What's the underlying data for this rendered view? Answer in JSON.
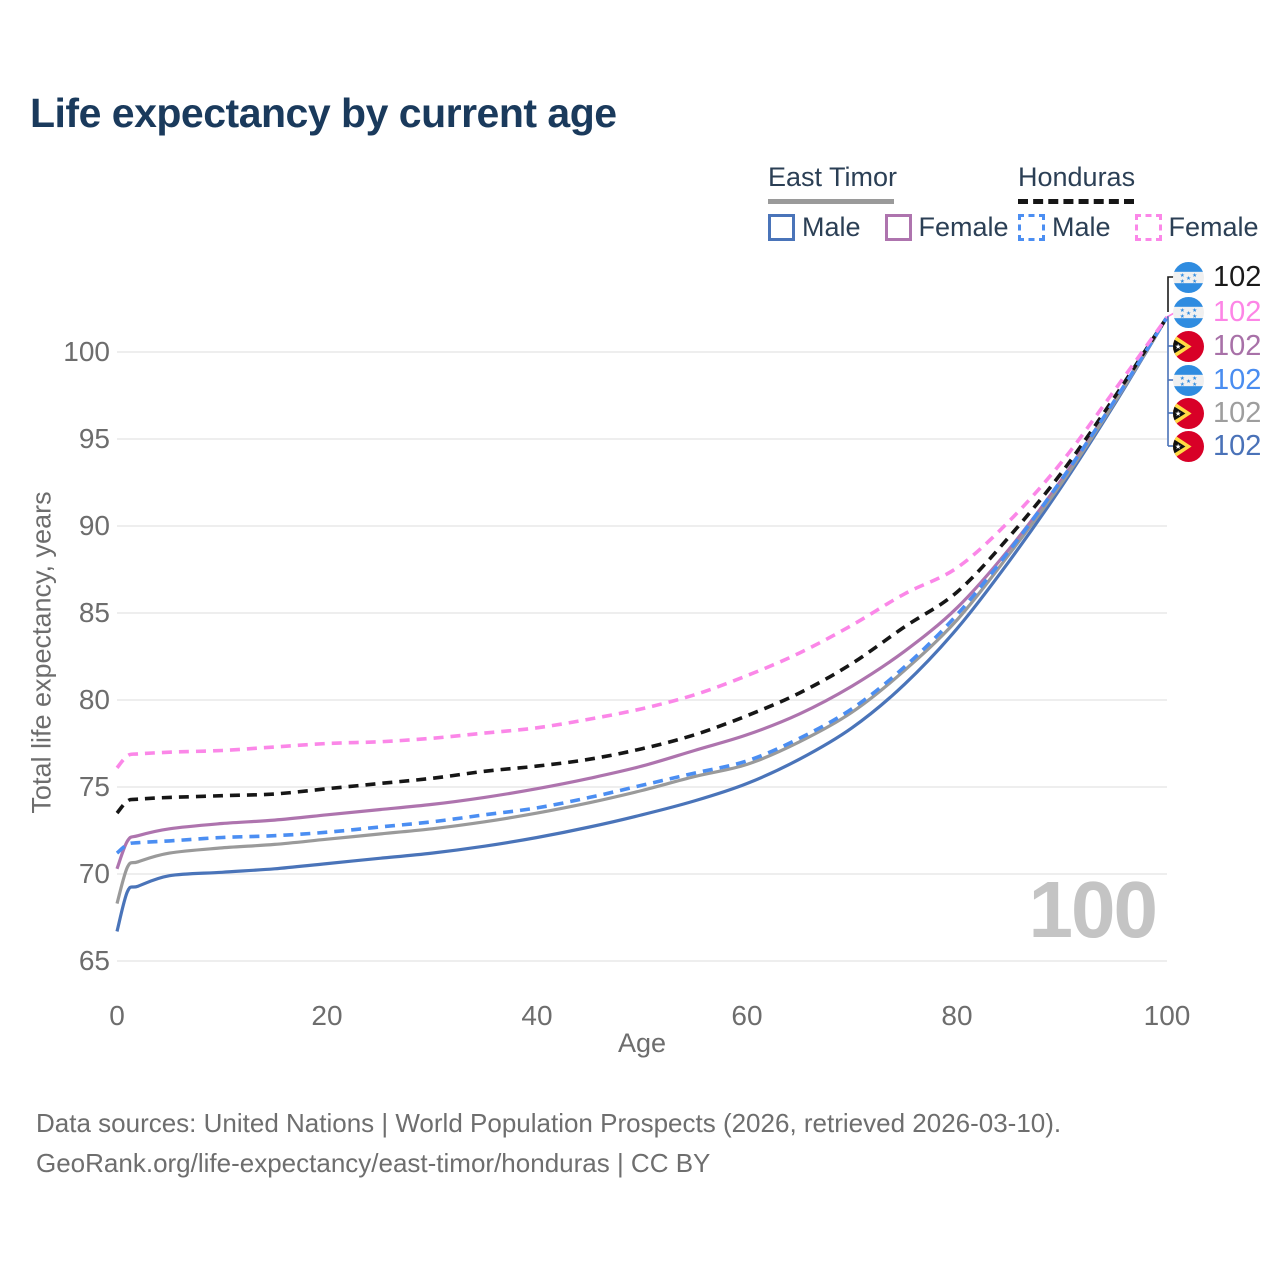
{
  "title": "Life expectancy by current age",
  "legend": {
    "groups": [
      {
        "name": "East Timor",
        "rule_color": "#9a9a9a",
        "rule_dashed": false,
        "items": [
          {
            "label": "Male",
            "color": "#4a74b9",
            "dashed": false
          },
          {
            "label": "Female",
            "color": "#ae74ae",
            "dashed": false
          }
        ]
      },
      {
        "name": "Honduras",
        "rule_color": "#161616",
        "rule_dashed": true,
        "items": [
          {
            "label": "Male",
            "color": "#4b8ef2",
            "dashed": true
          },
          {
            "label": "Female",
            "color": "#fb87e8",
            "dashed": true
          }
        ]
      }
    ]
  },
  "end_labels": [
    {
      "flag": "honduras",
      "value": "102",
      "color": "#1a1a1a"
    },
    {
      "flag": "honduras",
      "value": "102",
      "color": "#fd85e6"
    },
    {
      "flag": "east-timor",
      "value": "102",
      "color": "#a871a8"
    },
    {
      "flag": "honduras",
      "value": "102",
      "color": "#4a8df0"
    },
    {
      "flag": "east-timor",
      "value": "102",
      "color": "#9e9e9e"
    },
    {
      "flag": "east-timor",
      "value": "102",
      "color": "#4a72b8"
    }
  ],
  "watermark": "100",
  "footer": {
    "line1": "Data sources: United Nations | World Population Prospects (2026, retrieved 2026-03-10).",
    "line2": "GeoRank.org/life-expectancy/east-timor/honduras | CC BY"
  },
  "chart_data": {
    "type": "line",
    "title": "Life expectancy by current age",
    "xlabel": "Age",
    "ylabel": "Total life expectancy, years",
    "xlim": [
      0,
      100
    ],
    "ylim": [
      65,
      102.5
    ],
    "xticks": [
      0,
      20,
      40,
      60,
      80,
      100
    ],
    "yticks": [
      65,
      70,
      75,
      80,
      85,
      90,
      95,
      100
    ],
    "grid": "horizontal",
    "legend_position": "top-right",
    "series": [
      {
        "name": "East Timor Male",
        "country": "East Timor",
        "sex": "male",
        "color": "#4a74b9",
        "dashed": false,
        "end_value": 102,
        "points": [
          [
            0,
            66.7
          ],
          [
            1,
            69.0
          ],
          [
            2,
            69.3
          ],
          [
            5,
            69.9
          ],
          [
            10,
            70.1
          ],
          [
            15,
            70.3
          ],
          [
            20,
            70.6
          ],
          [
            25,
            70.9
          ],
          [
            30,
            71.2
          ],
          [
            35,
            71.6
          ],
          [
            40,
            72.1
          ],
          [
            45,
            72.7
          ],
          [
            50,
            73.4
          ],
          [
            55,
            74.2
          ],
          [
            60,
            75.2
          ],
          [
            65,
            76.6
          ],
          [
            70,
            78.4
          ],
          [
            75,
            80.9
          ],
          [
            80,
            84.1
          ],
          [
            85,
            88.0
          ],
          [
            90,
            92.3
          ],
          [
            95,
            97.0
          ],
          [
            100,
            102
          ]
        ]
      },
      {
        "name": "East Timor Female",
        "country": "East Timor",
        "sex": "female",
        "color": "#ae74ae",
        "dashed": false,
        "end_value": 102,
        "points": [
          [
            0,
            70.3
          ],
          [
            1,
            71.9
          ],
          [
            2,
            72.2
          ],
          [
            5,
            72.6
          ],
          [
            10,
            72.9
          ],
          [
            15,
            73.1
          ],
          [
            20,
            73.4
          ],
          [
            25,
            73.7
          ],
          [
            30,
            74.0
          ],
          [
            35,
            74.4
          ],
          [
            40,
            74.9
          ],
          [
            45,
            75.5
          ],
          [
            50,
            76.2
          ],
          [
            55,
            77.1
          ],
          [
            60,
            78.0
          ],
          [
            65,
            79.2
          ],
          [
            70,
            80.8
          ],
          [
            75,
            82.8
          ],
          [
            80,
            85.3
          ],
          [
            85,
            88.7
          ],
          [
            90,
            92.7
          ],
          [
            95,
            97.2
          ],
          [
            100,
            102
          ]
        ]
      },
      {
        "name": "East Timor (both sexes)",
        "country": "East Timor",
        "sex": "all",
        "color": "#9a9a9a",
        "dashed": false,
        "end_value": 102,
        "points": [
          [
            0,
            68.3
          ],
          [
            1,
            70.4
          ],
          [
            2,
            70.7
          ],
          [
            5,
            71.2
          ],
          [
            10,
            71.5
          ],
          [
            15,
            71.7
          ],
          [
            20,
            72.0
          ],
          [
            25,
            72.3
          ],
          [
            30,
            72.6
          ],
          [
            35,
            73.0
          ],
          [
            40,
            73.5
          ],
          [
            45,
            74.1
          ],
          [
            50,
            74.8
          ],
          [
            55,
            75.6
          ],
          [
            60,
            76.3
          ],
          [
            65,
            77.6
          ],
          [
            70,
            79.3
          ],
          [
            75,
            81.7
          ],
          [
            80,
            84.6
          ],
          [
            85,
            88.4
          ],
          [
            90,
            92.5
          ],
          [
            95,
            97.1
          ],
          [
            100,
            102
          ]
        ]
      },
      {
        "name": "Honduras (both sexes)",
        "country": "Honduras",
        "sex": "all",
        "color": "#161616",
        "dashed": true,
        "end_value": 102,
        "points": [
          [
            0,
            73.5
          ],
          [
            1,
            74.2
          ],
          [
            2,
            74.3
          ],
          [
            5,
            74.4
          ],
          [
            10,
            74.5
          ],
          [
            15,
            74.6
          ],
          [
            20,
            74.9
          ],
          [
            25,
            75.2
          ],
          [
            30,
            75.5
          ],
          [
            35,
            75.9
          ],
          [
            40,
            76.2
          ],
          [
            45,
            76.6
          ],
          [
            50,
            77.2
          ],
          [
            55,
            78.0
          ],
          [
            60,
            79.1
          ],
          [
            65,
            80.4
          ],
          [
            70,
            82.1
          ],
          [
            75,
            84.2
          ],
          [
            80,
            86.2
          ],
          [
            85,
            89.4
          ],
          [
            90,
            93.1
          ],
          [
            95,
            97.4
          ],
          [
            100,
            102
          ]
        ]
      },
      {
        "name": "Honduras Male",
        "country": "Honduras",
        "sex": "male",
        "color": "#4b8ef2",
        "dashed": true,
        "end_value": 102,
        "points": [
          [
            0,
            71.2
          ],
          [
            1,
            71.7
          ],
          [
            2,
            71.8
          ],
          [
            5,
            71.9
          ],
          [
            10,
            72.1
          ],
          [
            15,
            72.2
          ],
          [
            20,
            72.4
          ],
          [
            25,
            72.7
          ],
          [
            30,
            73.0
          ],
          [
            35,
            73.4
          ],
          [
            40,
            73.8
          ],
          [
            45,
            74.4
          ],
          [
            50,
            75.1
          ],
          [
            55,
            75.8
          ],
          [
            60,
            76.5
          ],
          [
            65,
            77.8
          ],
          [
            70,
            79.5
          ],
          [
            75,
            81.9
          ],
          [
            80,
            84.9
          ],
          [
            85,
            88.6
          ],
          [
            90,
            92.7
          ],
          [
            95,
            97.2
          ],
          [
            100,
            102
          ]
        ]
      },
      {
        "name": "Honduras Female",
        "country": "Honduras",
        "sex": "female",
        "color": "#fb87e8",
        "dashed": true,
        "end_value": 102,
        "points": [
          [
            0,
            76.1
          ],
          [
            1,
            76.8
          ],
          [
            2,
            76.9
          ],
          [
            5,
            77.0
          ],
          [
            10,
            77.1
          ],
          [
            15,
            77.3
          ],
          [
            20,
            77.5
          ],
          [
            25,
            77.6
          ],
          [
            30,
            77.8
          ],
          [
            35,
            78.1
          ],
          [
            40,
            78.4
          ],
          [
            45,
            78.9
          ],
          [
            50,
            79.5
          ],
          [
            55,
            80.3
          ],
          [
            60,
            81.4
          ],
          [
            65,
            82.7
          ],
          [
            70,
            84.3
          ],
          [
            75,
            86.1
          ],
          [
            80,
            87.6
          ],
          [
            85,
            90.3
          ],
          [
            90,
            93.7
          ],
          [
            95,
            97.8
          ],
          [
            100,
            102
          ]
        ]
      }
    ]
  }
}
